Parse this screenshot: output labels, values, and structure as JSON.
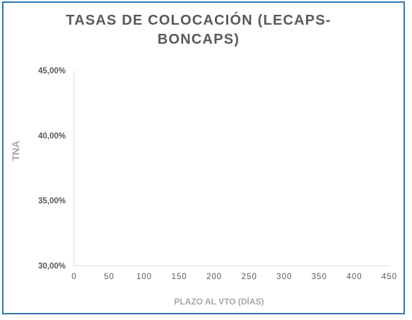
{
  "chart_data": {
    "type": "scatter",
    "title_lines": [
      "TASAS DE COLOCACIÓN (LECAPS-",
      "BONCAPS)"
    ],
    "xlabel": "PLAZO AL VTO (DÍAS)",
    "ylabel": "TNA",
    "xlim": [
      0,
      450
    ],
    "ylim": [
      0.3,
      0.45
    ],
    "x_ticks": [
      0,
      50,
      100,
      150,
      200,
      250,
      300,
      350,
      400,
      450
    ],
    "x_tick_labels": [
      "0",
      "50",
      "100",
      "150",
      "200",
      "250",
      "300",
      "350",
      "400",
      "450"
    ],
    "y_ticks": [
      0.3,
      0.35,
      0.4,
      0.45
    ],
    "y_tick_labels": [
      "30,00%",
      "35,00%",
      "40,00%",
      "45,00%"
    ],
    "grid": false,
    "series": []
  },
  "colors": {
    "frame_border": "#2e75b6",
    "title": "#595959",
    "tick_text": "#595959",
    "axis_title": "#a6a6a6",
    "axis_line": "#d9d9d9"
  }
}
